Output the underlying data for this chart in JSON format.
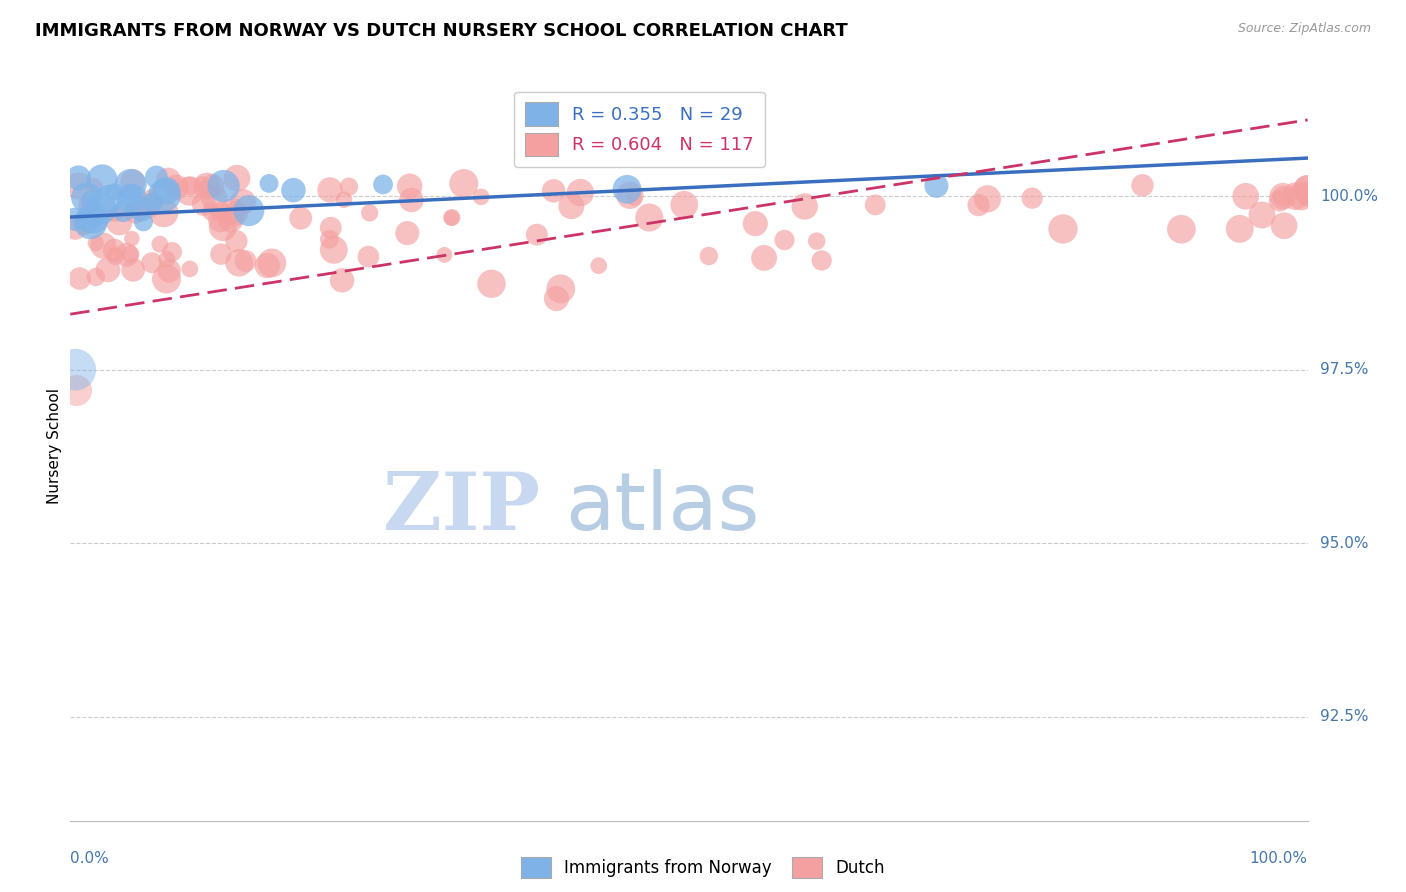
{
  "title": "IMMIGRANTS FROM NORWAY VS DUTCH NURSERY SCHOOL CORRELATION CHART",
  "source_text": "Source: ZipAtlas.com",
  "ylabel": "Nursery School",
  "x_min": 0.0,
  "x_max": 100.0,
  "y_min": 91.0,
  "y_max": 101.8,
  "y_ticks": [
    92.5,
    95.0,
    97.5,
    100.0
  ],
  "color_norway": "#7FB3E8",
  "color_dutch": "#F4A0A0",
  "color_norway_line": "#3A6FBF",
  "color_dutch_line": "#CC3366",
  "color_axis_text": "#4477AA",
  "color_gridline": "#CCCCCC",
  "norway_trend_x": [
    0.0,
    100.0
  ],
  "norway_trend_y": [
    99.7,
    100.55
  ],
  "dutch_trend_x": [
    0.0,
    100.0
  ],
  "dutch_trend_y": [
    98.3,
    101.1
  ],
  "watermark_zip_color": "#C8D8F0",
  "watermark_atlas_color": "#B0C8E0",
  "background_color": "#FFFFFF",
  "legend_r_norway": "R = 0.355",
  "legend_n_norway": "N = 29",
  "legend_r_dutch": "R = 0.604",
  "legend_n_dutch": "N = 117",
  "legend_norway": "Immigrants from Norway",
  "legend_dutch": "Dutch"
}
